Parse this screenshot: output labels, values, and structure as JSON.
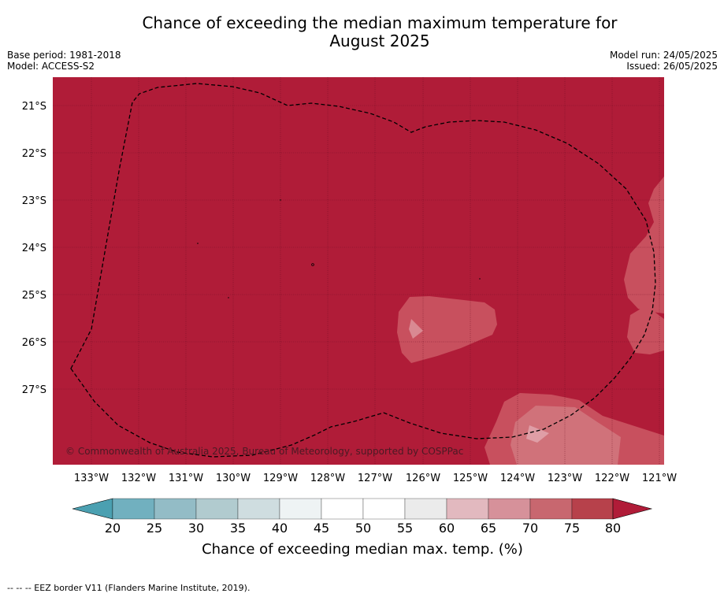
{
  "header": {
    "title_line1": "Chance of exceeding the median maximum temperature for",
    "title_line2": "August 2025",
    "base_period": "Base period: 1981-2018",
    "model": "Model: ACCESS-S2",
    "model_run": "Model run: 24/05/2025",
    "issued": "Issued: 26/05/2025"
  },
  "map": {
    "background_color": "#b01c38",
    "gridlines": true,
    "copyright": "© Commonwealth of Australia 2025, Bureau of Meteorology, supported by COSPPac",
    "lat_ticks": [
      "21°S",
      "22°S",
      "23°S",
      "24°S",
      "25°S",
      "26°S",
      "27°S"
    ],
    "lon_ticks": [
      "133°W",
      "132°W",
      "131°W",
      "130°W",
      "129°W",
      "128°W",
      "127°W",
      "126°W",
      "125°W",
      "124°W",
      "123°W",
      "122°W",
      "121°W"
    ],
    "boundary_style": "dashed",
    "dominant_category": "80+"
  },
  "colorbar": {
    "ticks": [
      "20",
      "25",
      "30",
      "35",
      "40",
      "45",
      "50",
      "55",
      "60",
      "65",
      "70",
      "75",
      "80"
    ],
    "colors": [
      "#4ba0b1",
      "#71b0bf",
      "#93bcc6",
      "#b1cbcf",
      "#cfdde0",
      "#eef3f4",
      "#ffffff",
      "#ffffff",
      "#ebebeb",
      "#e2b9bf",
      "#d6919a",
      "#c8676f",
      "#b7414b",
      "#b01c38"
    ],
    "label": "Chance of exceeding median max. temp. (%)"
  },
  "footer": {
    "legend": "--  --  -- EEZ border V11 (Flanders Marine Institute, 2019)."
  }
}
